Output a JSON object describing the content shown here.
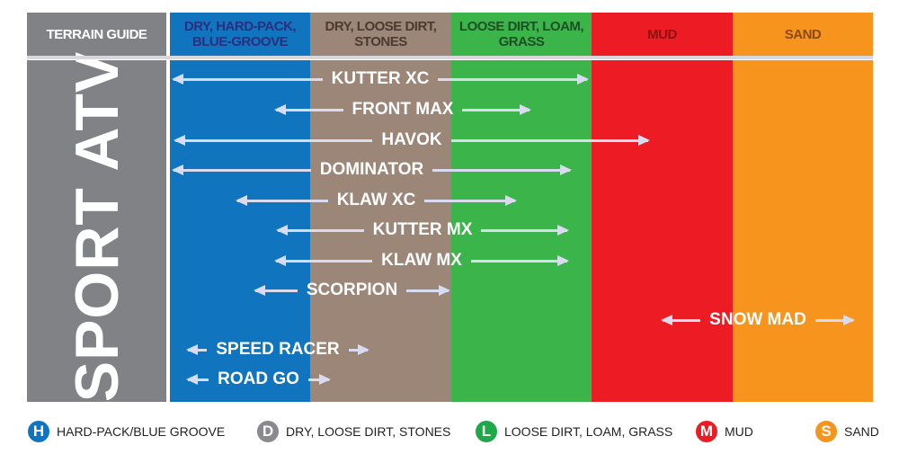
{
  "header": {
    "title": "TERRAIN GUIDE",
    "columns": [
      {
        "label": "DRY, HARD-PACK, BLUE-GROOVE",
        "color": "#1174be",
        "text_color": "#2b2f80"
      },
      {
        "label": "DRY, LOOSE DIRT, STONES",
        "color": "#9b8678",
        "text_color": "#4a3a30"
      },
      {
        "label": "LOOSE DIRT, LOAM, GRASS",
        "color": "#3bb54a",
        "text_color": "#1d4f27"
      },
      {
        "label": "MUD",
        "color": "#ed1c24",
        "text_color": "#8a1414"
      },
      {
        "label": "SAND",
        "color": "#f7941d",
        "text_color": "#8a4a14"
      }
    ]
  },
  "category": "SPORT ATV",
  "tires": [
    {
      "name": "KUTTER XC"
    },
    {
      "name": "FRONT MAX"
    },
    {
      "name": "HAVOK"
    },
    {
      "name": "DOMINATOR"
    },
    {
      "name": "KLAW XC"
    },
    {
      "name": "KUTTER MX"
    },
    {
      "name": "KLAW MX"
    },
    {
      "name": "SCORPION"
    },
    {
      "name": "SNOW MAD"
    },
    {
      "name": "SPEED RACER"
    },
    {
      "name": "ROAD GO"
    }
  ],
  "legend": [
    {
      "letter": "H",
      "label": "HARD-PACK/BLUE GROOVE",
      "color": "#1174be"
    },
    {
      "letter": "D",
      "label": "DRY, LOOSE DIRT, STONES",
      "color": "#8a8a8e"
    },
    {
      "letter": "L",
      "label": "LOOSE DIRT, LOAM, GRASS",
      "color": "#1ea84a"
    },
    {
      "letter": "M",
      "label": "MUD",
      "color": "#ed1c24"
    },
    {
      "letter": "S",
      "label": "SAND",
      "color": "#f7941d"
    }
  ]
}
